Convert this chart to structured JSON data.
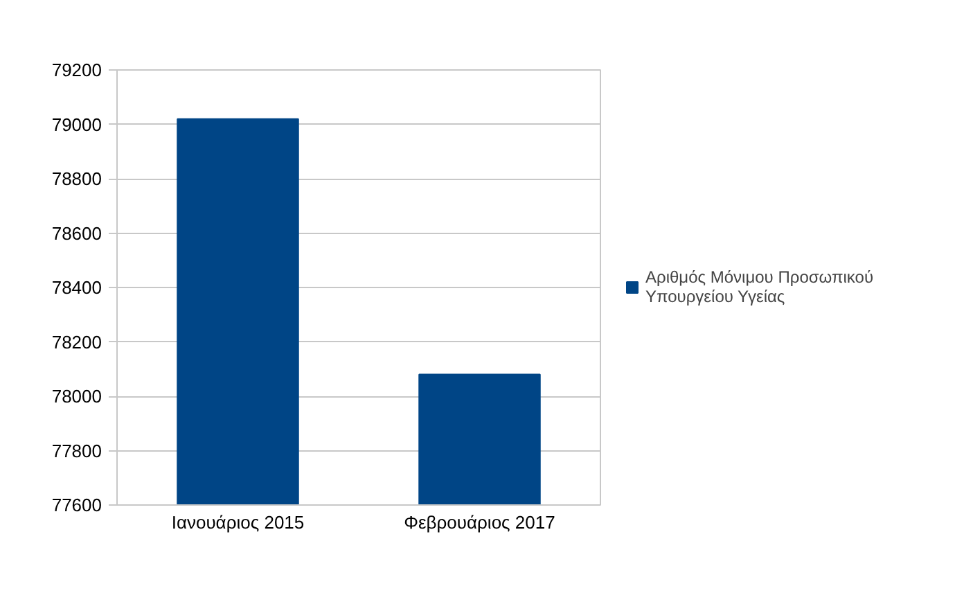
{
  "chart_data": {
    "type": "bar",
    "categories": [
      "Ιανουάριος 2015",
      "Φεβρουάριος 2017"
    ],
    "series": [
      {
        "name": "Αριθμός Μόνιμου Προσωπικού Υπουργείου Υγείας",
        "color": "#004586",
        "values": [
          79020,
          78080
        ]
      }
    ],
    "ylim": [
      77600,
      79200
    ],
    "yticks": [
      77600,
      77800,
      78000,
      78200,
      78400,
      78600,
      78800,
      79000,
      79200
    ],
    "grid": "y",
    "legend": "right"
  }
}
